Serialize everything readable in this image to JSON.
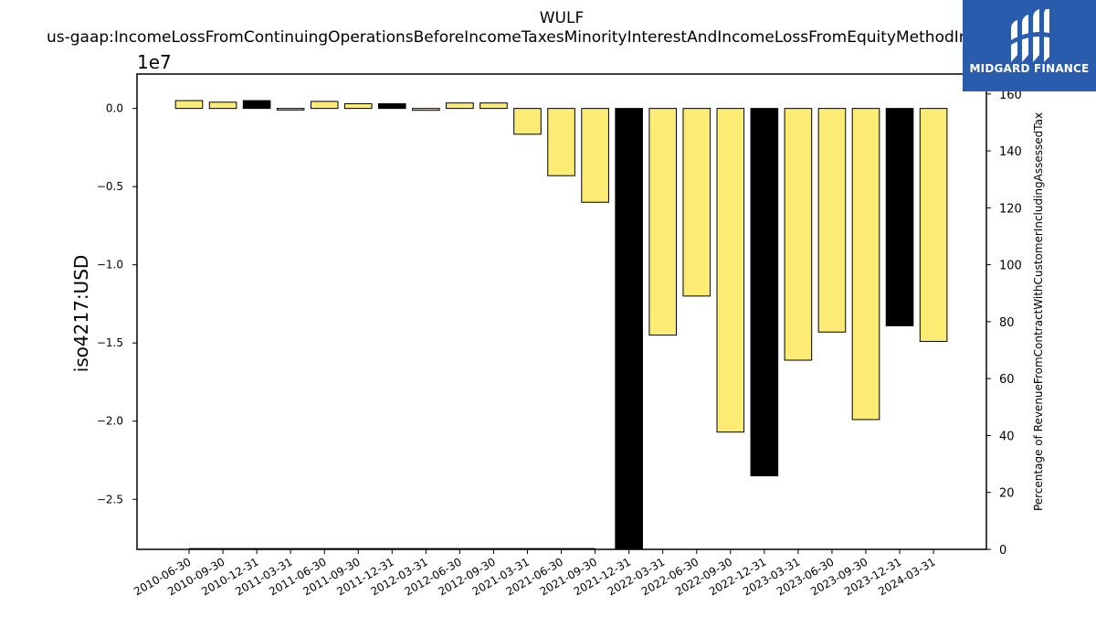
{
  "chart_data": {
    "type": "bar",
    "title": "WULF",
    "subtitle": "us-gaap:IncomeLossFromContinuingOperationsBeforeIncomeTaxesMinorityInterestAndIncomeLossFromEquityMethodInvestments",
    "ylabel": "iso4217:USD",
    "y2label": "Percentage of RevenueFromContractWithCustomerIncludingAssessedTax",
    "y_offset_label": "1e7",
    "ylim": [
      -2.82,
      0.22
    ],
    "y2lim": [
      0,
      167
    ],
    "yticks": [
      {
        "v": 0.0,
        "label": "0.0"
      },
      {
        "v": -0.5,
        "label": "−0.5"
      },
      {
        "v": -1.0,
        "label": "−1.0"
      },
      {
        "v": -1.5,
        "label": "−1.5"
      },
      {
        "v": -2.0,
        "label": "−2.0"
      },
      {
        "v": -2.5,
        "label": "−2.5"
      }
    ],
    "y2ticks": [
      {
        "v": 0,
        "label": "0"
      },
      {
        "v": 20,
        "label": "20"
      },
      {
        "v": 40,
        "label": "40"
      },
      {
        "v": 60,
        "label": "60"
      },
      {
        "v": 80,
        "label": "80"
      },
      {
        "v": 100,
        "label": "100"
      },
      {
        "v": 120,
        "label": "120"
      },
      {
        "v": 140,
        "label": "140"
      },
      {
        "v": 160,
        "label": "160"
      }
    ],
    "categories": [
      "2010-06-30",
      "2010-09-30",
      "2010-12-31",
      "2011-03-31",
      "2011-06-30",
      "2011-09-30",
      "2011-12-31",
      "2012-03-31",
      "2012-06-30",
      "2012-09-30",
      "2021-03-31",
      "2021-06-30",
      "2021-09-30",
      "2021-12-31",
      "2022-03-31",
      "2022-06-30",
      "2022-09-30",
      "2022-12-31",
      "2023-03-31",
      "2023-06-30",
      "2023-09-30",
      "2023-12-31",
      "2024-03-31"
    ],
    "values": [
      0.05,
      0.04,
      0.05,
      -0.01,
      0.045,
      0.03,
      0.03,
      -0.012,
      0.035,
      0.035,
      -0.165,
      -0.43,
      -0.6,
      -2.82,
      -1.45,
      -1.2,
      -2.07,
      -2.35,
      -1.61,
      -1.43,
      -1.99,
      -1.39,
      -1.49
    ],
    "highlight": [
      false,
      false,
      true,
      false,
      false,
      false,
      true,
      false,
      false,
      false,
      false,
      false,
      false,
      true,
      false,
      false,
      false,
      true,
      false,
      false,
      false,
      true,
      false
    ],
    "pct_series": [
      0.2,
      0.2,
      0.2,
      0.2,
      0.2,
      0.2,
      0.2,
      0.2,
      0.2,
      0.2,
      0.2,
      0.2,
      0.2,
      null,
      null,
      null,
      null,
      null,
      null,
      null,
      null,
      null,
      null
    ],
    "colors": {
      "bar": "#fdec74",
      "highlight": "#000000",
      "edge": "#000000"
    },
    "grid": false
  },
  "logo": {
    "text": "MIDGARD FINANCE"
  }
}
